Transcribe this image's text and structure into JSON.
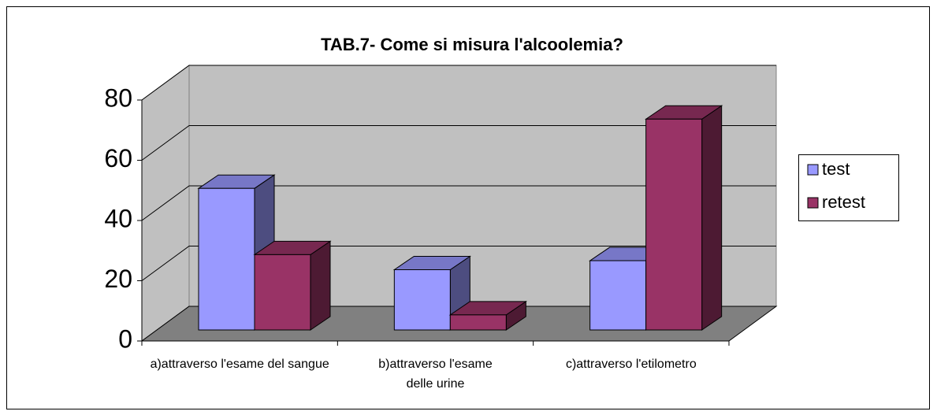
{
  "chart_data": {
    "type": "bar3d",
    "title": "TAB.7- Come si misura l'alcoolemia?",
    "categories": [
      "a)attraverso l'esame del sangue",
      "b)attraverso l'esame delle urine",
      "c)attraverso l'etilometro"
    ],
    "series": [
      {
        "name": "test",
        "color": "#9999ff",
        "values": [
          47,
          20,
          23
        ]
      },
      {
        "name": "retest",
        "color": "#993366",
        "values": [
          25,
          5,
          70
        ]
      }
    ],
    "ylim": [
      0,
      80
    ],
    "yticks": [
      0,
      20,
      40,
      60,
      80
    ],
    "grid": true,
    "legend": "right"
  }
}
